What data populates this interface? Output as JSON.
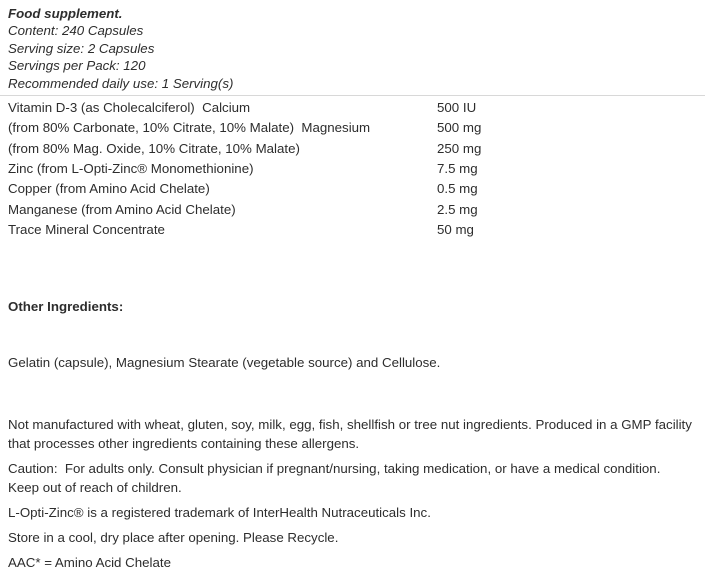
{
  "header": {
    "title": "Food supplement.",
    "content_line": "Content: 240 Capsules",
    "serving_size_line": "Serving size: 2 Capsules",
    "servings_per_pack_line": "Servings per Pack: 120",
    "recommended_use_line": "Recommended daily use: 1 Serving(s)"
  },
  "nutrition_table": {
    "rows": [
      {
        "label": "Vitamin D-3 (as Cholecalciferol)  Calcium",
        "value": "500 IU"
      },
      {
        "label": "(from 80% Carbonate, 10% Citrate, 10% Malate)  Magnesium",
        "value": "500 mg"
      },
      {
        "label": "(from 80% Mag. Oxide, 10% Citrate, 10% Malate)",
        "value": "250 mg"
      },
      {
        "label": "Zinc (from L-Opti-Zinc® Monomethionine)",
        "value": "7.5 mg"
      },
      {
        "label": "Copper (from Amino Acid Chelate)",
        "value": "0.5 mg"
      },
      {
        "label": "Manganese (from Amino Acid Chelate)",
        "value": "2.5 mg"
      },
      {
        "label": "Trace Mineral Concentrate",
        "value": "50 mg"
      }
    ]
  },
  "other_ingredients": {
    "heading": "Other Ingredients:",
    "text": "Gelatin (capsule), Magnesium Stearate (vegetable source) and Cellulose."
  },
  "notes": {
    "allergen": "Not manufactured with wheat, gluten, soy, milk, egg, fish, shellfish or tree nut ingredients. Produced in a GMP facility that processes other ingredients containing these allergens.",
    "caution": "Caution:  For adults only. Consult physician if pregnant/nursing, taking medication, or have a medical condition. Keep out of reach of children.",
    "trademark": "L-Opti-Zinc® is a registered trademark of InterHealth Nutraceuticals Inc.",
    "storage": "Store in a cool, dry place after opening. Please Recycle.",
    "aac_note": "AAC* = Amino Acid Chelate"
  }
}
